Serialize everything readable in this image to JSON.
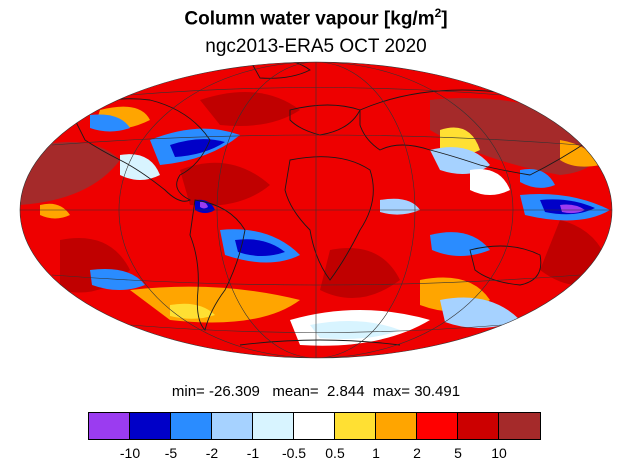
{
  "title": {
    "main": "Column water vapour [kg/m",
    "sup": "2",
    "close": "]"
  },
  "subtitle": "ngc2013-ERA5  OCT 2020",
  "stats": {
    "min_label": "min=",
    "min": "-26.309",
    "mean_label": "mean=",
    "mean": "2.844",
    "max_label": "max=",
    "max": "30.491"
  },
  "colorbar": {
    "colors": [
      "#9b3cf0",
      "#0000c8",
      "#2a8cff",
      "#a6d2ff",
      "#d8f4ff",
      "#ffffff",
      "#ffe033",
      "#ffa500",
      "#ff0000",
      "#cc0000",
      "#a52a2a"
    ],
    "ticks": [
      "-10",
      "-5",
      "-2",
      "-1",
      "-0.5",
      "0.5",
      "1",
      "2",
      "5",
      "10"
    ]
  },
  "map": {
    "projection": "Hammer (global)",
    "field": "column water vapour difference",
    "dominant_color": "#ff0000"
  }
}
